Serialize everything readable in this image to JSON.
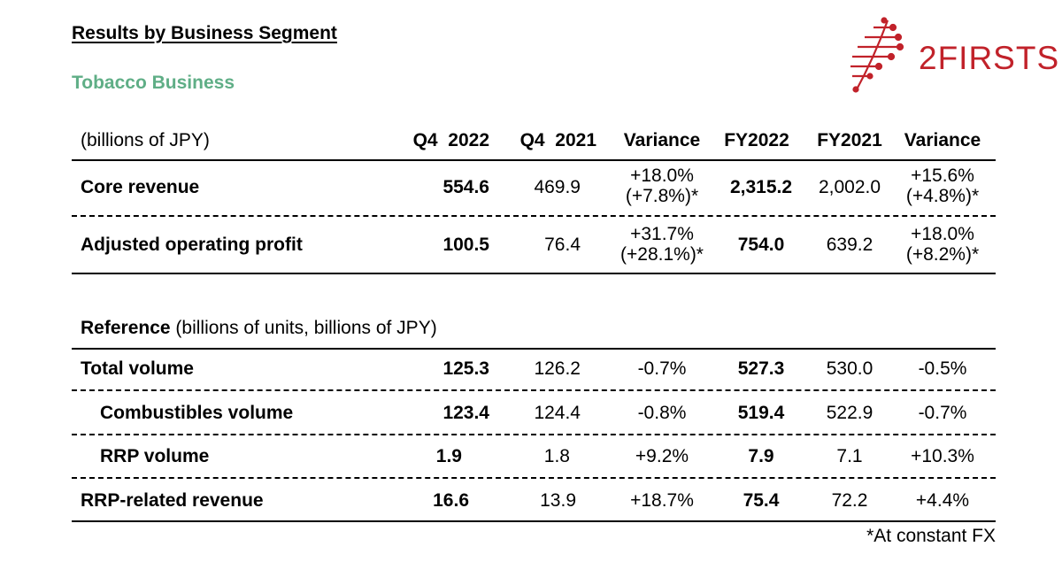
{
  "title": "Results by Business Segment",
  "subtitle": "Tobacco Business",
  "logo": {
    "text": "2FIRSTS",
    "color": "#c1222a"
  },
  "accent_color": "#5fae86",
  "table1": {
    "unit_label": "(billions of JPY)",
    "columns": [
      "Q4  2022",
      "Q4  2021",
      "Variance",
      "FY2022",
      "FY2021",
      "Variance"
    ],
    "rows": [
      {
        "label": "Core revenue",
        "q4_2022": "554.6",
        "q4_2021": "469.9",
        "var_q4_line1": "+18.0%",
        "var_q4_line2": "(+7.8%)*",
        "fy2022": "2,315.2",
        "fy2021": "2,002.0",
        "var_fy_line1": "+15.6%",
        "var_fy_line2": "(+4.8%)*"
      },
      {
        "label": "Adjusted operating profit",
        "q4_2022": "100.5",
        "q4_2021": "76.4",
        "var_q4_line1": "+31.7%",
        "var_q4_line2": "(+28.1%)*",
        "fy2022": "754.0",
        "fy2021": "639.2",
        "var_fy_line1": "+18.0%",
        "var_fy_line2": "(+8.2%)*"
      }
    ]
  },
  "table2": {
    "ref_bold": "Reference",
    "ref_rest": " (billions of units, billions of JPY)",
    "rows": [
      {
        "label": "Total volume",
        "q4_2022": "125.3",
        "q4_2021": "126.2",
        "var_q4": "-0.7%",
        "fy2022": "527.3",
        "fy2021": "530.0",
        "var_fy": "-0.5%"
      },
      {
        "label": "Combustibles volume",
        "q4_2022": "123.4",
        "q4_2021": "124.4",
        "var_q4": "-0.8%",
        "fy2022": "519.4",
        "fy2021": "522.9",
        "var_fy": "-0.7%"
      },
      {
        "label": "RRP volume",
        "q4_2022": "1.9",
        "q4_2021": "1.8",
        "var_q4": "+9.2%",
        "fy2022": "7.9",
        "fy2021": "7.1",
        "var_fy": "+10.3%"
      },
      {
        "label": "RRP-related revenue",
        "q4_2022": "16.6",
        "q4_2021": "13.9",
        "var_q4": "+18.7%",
        "fy2022": "75.4",
        "fy2021": "72.2",
        "var_fy": "+4.4%"
      }
    ]
  },
  "footnote": "*At constant FX"
}
